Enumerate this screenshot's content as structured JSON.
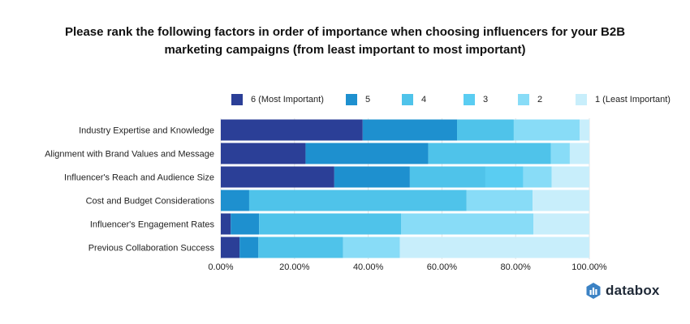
{
  "title_line1": "Please rank the following factors in order of importance when choosing influencers for your B2B",
  "title_line2": "marketing campaigns (from least important to most important)",
  "chart_data": {
    "type": "bar",
    "orientation": "horizontal",
    "stacked": true,
    "categories": [
      "Industry Expertise and Knowledge",
      "Alignment with Brand Values and Message",
      "Influencer's Reach and Audience Size",
      "Cost and Budget Considerations",
      "Influencer's Engagement Rates",
      "Previous Collaboration Success"
    ],
    "series": [
      {
        "name": "6 (Most Important)",
        "color": "#2b3f97",
        "values": [
          38.5,
          23.0,
          30.8,
          0.0,
          2.7,
          5.1
        ]
      },
      {
        "name": "5",
        "color": "#1e90cf",
        "values": [
          25.6,
          33.3,
          20.5,
          7.7,
          7.7,
          5.1
        ]
      },
      {
        "name": "4",
        "color": "#4fc3ea",
        "values": [
          15.4,
          33.3,
          20.5,
          59.0,
          38.5,
          23.0
        ]
      },
      {
        "name": "3",
        "color": "#5acdf2",
        "values": [
          0.0,
          0.0,
          10.3,
          0.0,
          0.0,
          0.0
        ]
      },
      {
        "name": "2",
        "color": "#88dcf7",
        "values": [
          17.9,
          5.1,
          7.7,
          17.9,
          35.9,
          15.4
        ]
      },
      {
        "name": "1 (Least Important)",
        "color": "#c8eefb",
        "values": [
          2.6,
          5.3,
          10.2,
          15.4,
          15.2,
          51.4
        ]
      }
    ],
    "xlim": [
      0,
      100
    ],
    "xticks": [
      "0.00%",
      "20.00%",
      "40.00%",
      "60.00%",
      "80.00%",
      "100.00%"
    ],
    "legend_position": "top"
  },
  "logo": {
    "text": "databox",
    "icon": "databox-bars-icon",
    "color": "#1f2937",
    "icon_color": "#3b82c4"
  }
}
